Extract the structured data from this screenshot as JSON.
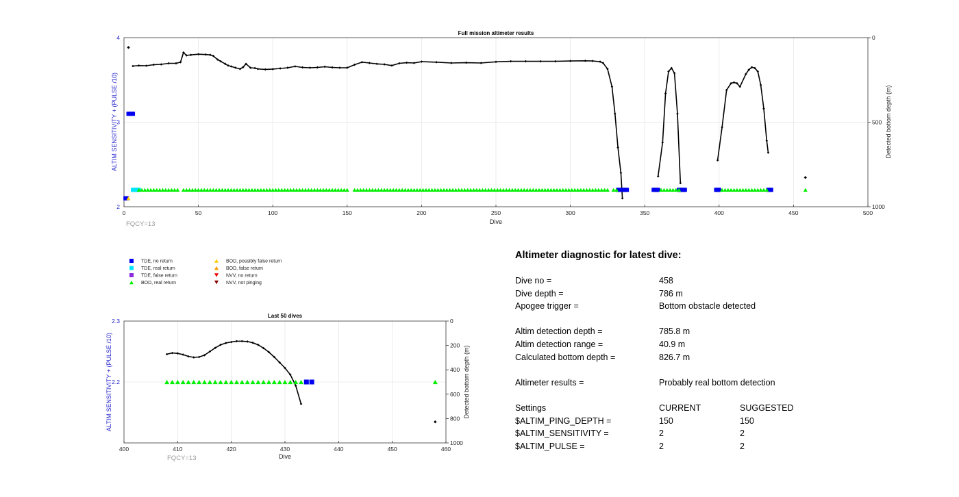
{
  "chart_data": [
    {
      "type": "scatter",
      "title": "Full mission altimeter results",
      "xlabel": "Dive",
      "ylabel": "ALTIM SENSITIVITY + (PULSE /10)",
      "y2label": "Detected bottom depth (m)",
      "xlim": [
        0,
        500
      ],
      "ylim": [
        2,
        4
      ],
      "y2lim": [
        0,
        1000
      ],
      "y2_reversed": true,
      "xticks": [
        "0",
        "50",
        "100",
        "150",
        "200",
        "250",
        "300",
        "350",
        "400",
        "450",
        "500"
      ],
      "yticks": [
        "2",
        "3",
        "4"
      ],
      "y2ticks": [
        "0",
        "500",
        "1000"
      ],
      "grid": true,
      "note": "FQCY=13",
      "bottom_depth_outlier": {
        "x": 3,
        "y": 58
      },
      "bottom_depth_segments": [
        {
          "x": [
            6,
            10,
            15,
            20,
            25,
            30,
            35,
            38,
            40,
            42,
            45,
            50,
            55,
            58,
            60,
            63,
            65,
            68,
            70,
            72,
            75,
            78,
            80,
            82,
            85,
            88,
            90,
            95,
            100,
            105,
            110,
            115,
            120,
            125,
            130,
            135,
            140,
            145,
            150,
            155,
            160,
            165,
            170,
            175,
            180,
            185,
            190,
            195,
            200,
            210,
            220,
            230,
            240,
            250,
            260,
            270,
            280,
            290,
            300,
            310,
            315,
            320,
            322,
            325,
            328,
            330,
            332,
            334,
            335
          ],
          "y": [
            168,
            165,
            166,
            160,
            158,
            152,
            152,
            145,
            88,
            105,
            102,
            98,
            100,
            102,
            108,
            130,
            140,
            155,
            165,
            170,
            178,
            185,
            175,
            155,
            178,
            180,
            185,
            188,
            186,
            182,
            178,
            170,
            176,
            178,
            176,
            172,
            176,
            178,
            178,
            160,
            145,
            150,
            155,
            158,
            165,
            152,
            148,
            150,
            142,
            145,
            150,
            148,
            150,
            143,
            140,
            140,
            140,
            140,
            138,
            137,
            138,
            142,
            150,
            185,
            290,
            450,
            650,
            800,
            950
          ]
        },
        {
          "x": [
            359,
            362,
            364,
            366,
            368,
            370,
            372,
            374
          ],
          "y": [
            820,
            620,
            330,
            200,
            180,
            210,
            450,
            860
          ]
        },
        {
          "x": [
            399,
            402,
            405,
            408,
            410,
            412,
            414,
            418,
            420,
            422,
            424,
            426,
            428,
            430,
            432,
            433
          ],
          "y": [
            725,
            530,
            310,
            270,
            265,
            270,
            290,
            215,
            190,
            175,
            180,
            200,
            280,
            420,
            610,
            680
          ]
        }
      ],
      "bottom_depth_late": {
        "x": 458,
        "y": 827
      },
      "series": [
        {
          "name": "TDE, no return",
          "color": "#0000ee",
          "marker": "square",
          "y": 3.1,
          "x": [
            3,
            4,
            5,
            6
          ]
        },
        {
          "name": "TDE, no return",
          "color": "#0000ee",
          "marker": "square",
          "y": 2.2,
          "x": [
            332,
            333,
            335,
            336,
            337,
            338,
            356,
            357,
            358,
            359,
            373,
            374,
            375,
            376,
            377,
            398,
            399,
            400,
            433,
            434,
            435
          ]
        },
        {
          "name": "TDE, no return",
          "color": "#0000ee",
          "marker": "square",
          "y": 2.1,
          "x": [
            1,
            2
          ]
        },
        {
          "name": "TDE, real return",
          "color": "#00e5ff",
          "marker": "square",
          "y": 2.2,
          "x": [
            6,
            7,
            8,
            9,
            10
          ]
        },
        {
          "name": "BOD, real return",
          "color": "#00ee00",
          "marker": "triangle-up",
          "y": 2.2,
          "ranges": [
            [
              10,
              36
            ],
            [
              40,
              150
            ],
            [
              155,
              325
            ],
            [
              329,
              331
            ],
            [
              361,
              373
            ],
            [
              402,
              432
            ]
          ],
          "x_extra": [
            458
          ]
        },
        {
          "name": "BOD, possibly false return",
          "color": "#ffcc00",
          "marker": "triangle-up",
          "y": 2.1,
          "x": [
            3
          ]
        }
      ]
    },
    {
      "type": "scatter",
      "title": "Last 50 dives",
      "xlabel": "Dive",
      "ylabel": "ALTIM SENSITIVITY + (PULSE /10)",
      "y2label": "Detected bottom depth (m)",
      "xlim": [
        400,
        460
      ],
      "ylim": [
        2.1,
        2.3
      ],
      "y2lim": [
        0,
        1000
      ],
      "y2_reversed": true,
      "xticks": [
        "400",
        "410",
        "420",
        "430",
        "440",
        "450",
        "460"
      ],
      "yticks": [
        "2.2",
        "2.3"
      ],
      "y2ticks": [
        "0",
        "200",
        "400",
        "600",
        "800",
        "1000"
      ],
      "grid": true,
      "note": "FQCY=13",
      "bottom_depth": {
        "x": [
          408,
          409,
          410,
          411,
          412,
          413,
          414,
          415,
          416,
          417,
          418,
          419,
          420,
          421,
          422,
          423,
          424,
          425,
          426,
          427,
          428,
          429,
          430,
          431,
          432,
          433
        ],
        "y": [
          272,
          262,
          265,
          275,
          290,
          298,
          295,
          280,
          250,
          220,
          195,
          180,
          172,
          165,
          165,
          168,
          178,
          195,
          222,
          255,
          295,
          340,
          385,
          440,
          530,
          680
        ]
      },
      "bottom_depth_late": {
        "x": 458,
        "y": 827
      },
      "series": [
        {
          "name": "BOD, real return",
          "color": "#00ee00",
          "marker": "triangle-up",
          "y": 2.2,
          "x": [
            408,
            409,
            410,
            411,
            412,
            413,
            414,
            415,
            416,
            417,
            418,
            419,
            420,
            421,
            422,
            423,
            424,
            425,
            426,
            427,
            428,
            429,
            430,
            431,
            432,
            433,
            458
          ]
        },
        {
          "name": "TDE, no return",
          "color": "#0000ee",
          "marker": "square",
          "y": 2.2,
          "x": [
            434,
            435
          ]
        }
      ]
    }
  ],
  "legend": [
    {
      "label": "TDE, no return",
      "color": "#0000ee",
      "marker": "square"
    },
    {
      "label": "TDE, real return",
      "color": "#00e5ff",
      "marker": "square"
    },
    {
      "label": "TDE, false return",
      "color": "#8a2be2",
      "marker": "square"
    },
    {
      "label": "BOD, real return",
      "color": "#00ee00",
      "marker": "triangle-up"
    },
    {
      "label": "BOD, possibly false return",
      "color": "#ffcc00",
      "marker": "triangle-up"
    },
    {
      "label": "BOD, false return",
      "color": "#ff9900",
      "marker": "triangle-up"
    },
    {
      "label": "NVV, no return",
      "color": "#ee0000",
      "marker": "triangle-down"
    },
    {
      "label": "NVV, not pinging",
      "color": "#8b0000",
      "marker": "triangle-down"
    }
  ],
  "diagnostic": {
    "heading": "Altimeter diagnostic for latest dive:",
    "dive_no_label": "Dive no =",
    "dive_no": "458",
    "dive_depth_label": "Dive depth =",
    "dive_depth": "786 m",
    "apogee_label": "Apogee trigger =",
    "apogee": "Bottom obstacle detected",
    "det_depth_label": "Altim detection depth =",
    "det_depth": "785.8 m",
    "det_range_label": "Altim detection range =",
    "det_range": "40.9 m",
    "calc_depth_label": "Calculated bottom depth =",
    "calc_depth": "826.7 m",
    "results_label": "Altimeter results =",
    "results": "Probably real bottom detection",
    "settings_label": "Settings",
    "current_label": "CURRENT",
    "suggested_label": "SUGGESTED",
    "settings": [
      {
        "name": "$ALTIM_PING_DEPTH =",
        "current": "150",
        "suggested": "150"
      },
      {
        "name": "$ALTIM_SENSITIVITY =",
        "current": "2",
        "suggested": "2"
      },
      {
        "name": "$ALTIM_PULSE =",
        "current": "2",
        "suggested": "2"
      }
    ]
  }
}
